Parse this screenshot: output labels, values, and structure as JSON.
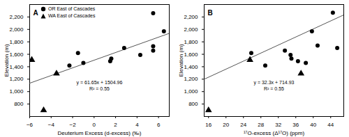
{
  "chart_data": [
    {
      "type": "scatter",
      "title": "A",
      "x_label": "Deuterium Excess (d-excess) (‰)",
      "y_label": "Elevation (m)",
      "xlim": [
        -6,
        7
      ],
      "xticks": [
        -6,
        -4,
        -2,
        0,
        2,
        4,
        6
      ],
      "ylim": [
        600,
        2400
      ],
      "yticks": [
        800,
        1000,
        1200,
        1400,
        1600,
        1800,
        2000,
        2200
      ],
      "legend": "top-left",
      "series": [
        {
          "name": "OR East of Cascades",
          "marker": "circle",
          "color": "#000000",
          "x": [
            -2.3,
            -1.5,
            -1.0,
            1.5,
            1.6,
            2.8,
            4.3,
            5.5,
            5.5,
            5.5,
            6.5
          ],
          "values": [
            1420,
            1620,
            1460,
            1490,
            1530,
            1700,
            1590,
            1660,
            1730,
            2260,
            1970
          ]
        },
        {
          "name": "WA East of Cascades",
          "marker": "triangle",
          "color": "#000000",
          "x": [
            -5.8,
            -3.5,
            -4.7
          ],
          "values": [
            1510,
            1290,
            700
          ]
        }
      ],
      "trendline": {
        "slope": 61.65,
        "intercept": 1504.96,
        "color": "#555555"
      },
      "annotations": [
        "y = 61.65x + 1504.96",
        "R² = 0.55"
      ]
    },
    {
      "type": "scatter",
      "title": "B",
      "x_label": "¹⁷O-excess (Δ¹⁷O) (ppm)",
      "y_label": "Elevation (m)",
      "xlim": [
        15,
        47
      ],
      "xticks": [
        16,
        20,
        24,
        28,
        32,
        36,
        40,
        44
      ],
      "ylim": [
        600,
        2400
      ],
      "yticks": [
        800,
        1000,
        1200,
        1400,
        1600,
        1800,
        2000,
        2200
      ],
      "series": [
        {
          "marker": "circle",
          "color": "#000000",
          "x": [
            25.8,
            29.0,
            33.5,
            34.8,
            35.0,
            36.5,
            38.3,
            39.7,
            41.0,
            44.5,
            45.5
          ],
          "values": [
            1620,
            1420,
            1660,
            1590,
            1530,
            1490,
            1460,
            1970,
            1740,
            2270,
            1700
          ]
        },
        {
          "marker": "triangle",
          "color": "#000000",
          "x": [
            25.5,
            37.2,
            16.0
          ],
          "values": [
            1510,
            1290,
            700
          ]
        }
      ],
      "trendline": {
        "slope": 32.3,
        "intercept": 714.93,
        "color": "#555555"
      },
      "annotations": [
        "y = 32.3x + 714.93",
        "R² = 0.55"
      ]
    }
  ]
}
